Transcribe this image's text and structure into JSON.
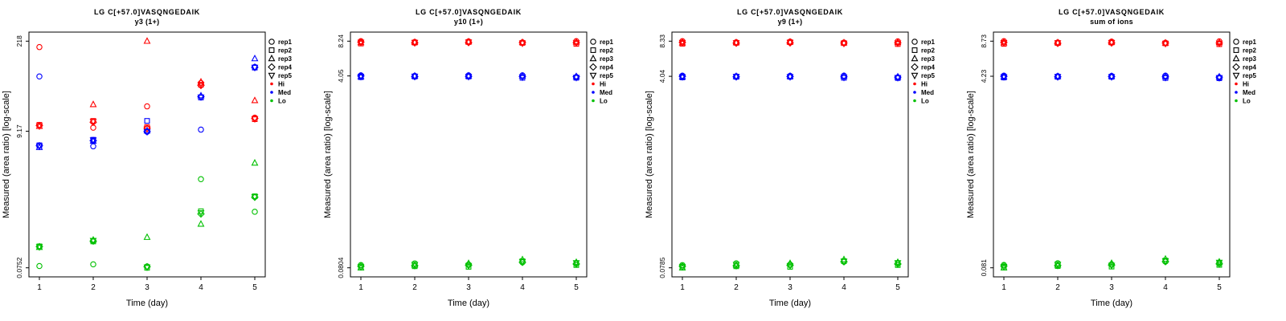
{
  "figure": {
    "xlabel": "Time (day)",
    "ylabel": "Measured (area ratio) [log-scale]"
  },
  "chart_data": [
    {
      "type": "scatter",
      "title": "LG C[+57.0]VASQNGEDAIK",
      "subtitle": "y3 (1+)",
      "xlabel": "Time (day)",
      "ylabel": "Measured (area ratio) [log-scale]",
      "yscale": "log",
      "x": [
        1,
        2,
        3,
        4,
        5
      ],
      "x_tick_labels": [
        "1",
        "2",
        "3",
        "4",
        "5"
      ],
      "ytick_values": [
        0.0752,
        9.17,
        218
      ],
      "ytick_labels": [
        "0.0752",
        "9.17",
        "218"
      ],
      "legend": {
        "position": "right",
        "rep_labels": [
          "rep1",
          "rep2",
          "rep3",
          "rep4",
          "rep5"
        ],
        "rep_symbols": [
          "circle",
          "square",
          "triangle-up",
          "diamond",
          "triangle-down"
        ],
        "group_labels": [
          "Hi",
          "Med",
          "Lo"
        ],
        "group_colors": [
          "#FF0000",
          "#0000FF",
          "#00C000"
        ]
      },
      "series": [
        {
          "name": "Hi",
          "color": "#FF0000",
          "reps": [
            [
              177,
              10.4,
              22,
              50,
              14.8
            ],
            [
              11.5,
              13.2,
              10.6,
              47,
              14.0
            ],
            [
              10.9,
              23.5,
              218,
              52,
              27
            ],
            [
              11.2,
              12.6,
              10.2,
              46,
              14.4
            ],
            [
              11.0,
              12.9,
              10.0,
              47.5,
              14.2
            ]
          ]
        },
        {
          "name": "Med",
          "color": "#0000FF",
          "reps": [
            [
              63,
              5.4,
              9.0,
              9.7,
              88
            ],
            [
              5.6,
              6.8,
              13.2,
              30,
              86
            ],
            [
              5.2,
              6.5,
              9.3,
              32,
              118
            ],
            [
              5.5,
              6.6,
              9.1,
              31,
              87
            ],
            [
              5.4,
              6.7,
              9.0,
              30.5,
              86.5
            ]
          ]
        },
        {
          "name": "Lo",
          "color": "#00C000",
          "reps": [
            [
              0.08,
              0.085,
              0.079,
              1.7,
              0.54
            ],
            [
              0.16,
              0.19,
              0.0752,
              0.55,
              0.93
            ],
            [
              0.155,
              0.2,
              0.22,
              0.35,
              3.0
            ],
            [
              0.158,
              0.193,
              0.078,
              0.5,
              0.9
            ],
            [
              0.157,
              0.196,
              0.077,
              0.52,
              0.91
            ]
          ]
        }
      ]
    },
    {
      "type": "scatter",
      "title": "LG C[+57.0]VASQNGEDAIK",
      "subtitle": "y10 (1+)",
      "xlabel": "Time (day)",
      "ylabel": "Measured (area ratio) [log-scale]",
      "yscale": "log",
      "x": [
        1,
        2,
        3,
        4,
        5
      ],
      "x_tick_labels": [
        "1",
        "2",
        "3",
        "4",
        "5"
      ],
      "ytick_values": [
        0.0804,
        4.05,
        8.24
      ],
      "ytick_labels": [
        "0.0804",
        "4.05",
        "8.24"
      ],
      "legend": {
        "position": "right",
        "rep_labels": [
          "rep1",
          "rep2",
          "rep3",
          "rep4",
          "rep5"
        ],
        "rep_symbols": [
          "circle",
          "square",
          "triangle-up",
          "diamond",
          "triangle-down"
        ],
        "group_labels": [
          "Hi",
          "Med",
          "Lo"
        ],
        "group_colors": [
          "#FF0000",
          "#0000FF",
          "#00C000"
        ]
      },
      "series": [
        {
          "name": "Hi",
          "color": "#FF0000",
          "reps": [
            [
              8.24,
              8.12,
              8.2,
              8.05,
              8.24
            ],
            [
              7.85,
              8.0,
              8.1,
              7.95,
              7.8
            ],
            [
              8.02,
              8.06,
              8.15,
              8.04,
              8.1
            ],
            [
              8.1,
              7.96,
              8.02,
              8.0,
              8.0
            ],
            [
              8.05,
              8.02,
              8.06,
              7.9,
              7.95
            ]
          ]
        },
        {
          "name": "Med",
          "color": "#0000FF",
          "reps": [
            [
              4.1,
              4.06,
              4.1,
              4.1,
              3.95
            ],
            [
              3.95,
              4.0,
              4.0,
              3.9,
              3.9
            ],
            [
              4.0,
              4.05,
              4.06,
              4.05,
              4.0
            ],
            [
              4.05,
              4.0,
              4.02,
              4.0,
              3.98
            ],
            [
              4.0,
              4.02,
              4.0,
              3.95,
              3.92
            ]
          ]
        },
        {
          "name": "Lo",
          "color": "#00C000",
          "reps": [
            [
              0.085,
              0.088,
              0.086,
              0.09,
              0.088
            ],
            [
              0.081,
              0.083,
              0.082,
              0.092,
              0.085
            ],
            [
              0.0804,
              0.085,
              0.088,
              0.095,
              0.09
            ],
            [
              0.083,
              0.084,
              0.085,
              0.09,
              0.087
            ],
            [
              0.082,
              0.086,
              0.084,
              0.091,
              0.089
            ]
          ]
        }
      ]
    },
    {
      "type": "scatter",
      "title": "LG C[+57.0]VASQNGEDAIK",
      "subtitle": "y9 (1+)",
      "xlabel": "Time (day)",
      "ylabel": "Measured (area ratio) [log-scale]",
      "yscale": "log",
      "x": [
        1,
        2,
        3,
        4,
        5
      ],
      "x_tick_labels": [
        "1",
        "2",
        "3",
        "4",
        "5"
      ],
      "ytick_values": [
        0.0785,
        4.04,
        8.33
      ],
      "ytick_labels": [
        "0.0785",
        "4.04",
        "8.33"
      ],
      "legend": {
        "position": "right",
        "rep_labels": [
          "rep1",
          "rep2",
          "rep3",
          "rep4",
          "rep5"
        ],
        "rep_symbols": [
          "circle",
          "square",
          "triangle-up",
          "diamond",
          "triangle-down"
        ],
        "group_labels": [
          "Hi",
          "Med",
          "Lo"
        ],
        "group_colors": [
          "#FF0000",
          "#0000FF",
          "#00C000"
        ]
      },
      "series": [
        {
          "name": "Hi",
          "color": "#FF0000",
          "reps": [
            [
              8.33,
              8.15,
              8.25,
              8.1,
              8.3
            ],
            [
              7.9,
              8.05,
              8.15,
              8.0,
              7.85
            ],
            [
              8.05,
              8.1,
              8.2,
              8.08,
              8.12
            ],
            [
              8.12,
              8.0,
              8.05,
              8.02,
              8.05
            ],
            [
              8.08,
              8.04,
              8.1,
              7.95,
              8.0
            ]
          ]
        },
        {
          "name": "Med",
          "color": "#0000FF",
          "reps": [
            [
              4.1,
              4.05,
              4.08,
              4.1,
              3.95
            ],
            [
              3.95,
              4.0,
              4.0,
              3.92,
              3.9
            ],
            [
              4.0,
              4.04,
              4.05,
              4.05,
              4.0
            ],
            [
              4.04,
              4.0,
              4.02,
              4.0,
              3.97
            ],
            [
              4.0,
              4.02,
              4.0,
              3.95,
              3.93
            ]
          ]
        },
        {
          "name": "Lo",
          "color": "#00C000",
          "reps": [
            [
              0.083,
              0.086,
              0.084,
              0.089,
              0.086
            ],
            [
              0.079,
              0.081,
              0.08,
              0.09,
              0.083
            ],
            [
              0.0785,
              0.083,
              0.086,
              0.093,
              0.088
            ],
            [
              0.081,
              0.082,
              0.083,
              0.089,
              0.085
            ],
            [
              0.08,
              0.084,
              0.082,
              0.0895,
              0.087
            ]
          ]
        }
      ]
    },
    {
      "type": "scatter",
      "title": "LG C[+57.0]VASQNGEDAIK",
      "subtitle": "sum of ions",
      "xlabel": "Time (day)",
      "ylabel": "Measured (area ratio) [log-scale]",
      "yscale": "log",
      "x": [
        1,
        2,
        3,
        4,
        5
      ],
      "x_tick_labels": [
        "1",
        "2",
        "3",
        "4",
        "5"
      ],
      "ytick_values": [
        0.081,
        4.23,
        8.73
      ],
      "ytick_labels": [
        "0.081",
        "4.23",
        "8.73"
      ],
      "legend": {
        "position": "right",
        "rep_labels": [
          "rep1",
          "rep2",
          "rep3",
          "rep4",
          "rep5"
        ],
        "rep_symbols": [
          "circle",
          "square",
          "triangle-up",
          "diamond",
          "triangle-down"
        ],
        "group_labels": [
          "Hi",
          "Med",
          "Lo"
        ],
        "group_colors": [
          "#FF0000",
          "#0000FF",
          "#00C000"
        ]
      },
      "series": [
        {
          "name": "Hi",
          "color": "#FF0000",
          "reps": [
            [
              8.73,
              8.5,
              8.65,
              8.45,
              8.7
            ],
            [
              8.25,
              8.4,
              8.5,
              8.35,
              8.2
            ],
            [
              8.45,
              8.48,
              8.55,
              8.42,
              8.5
            ],
            [
              8.5,
              8.35,
              8.42,
              8.4,
              8.4
            ],
            [
              8.46,
              8.42,
              8.46,
              8.3,
              8.35
            ]
          ]
        },
        {
          "name": "Med",
          "color": "#0000FF",
          "reps": [
            [
              4.28,
              4.24,
              4.26,
              4.28,
              4.12
            ],
            [
              4.12,
              4.18,
              4.18,
              4.08,
              4.06
            ],
            [
              4.18,
              4.22,
              4.23,
              4.22,
              4.18
            ],
            [
              4.22,
              4.18,
              4.2,
              4.18,
              4.15
            ],
            [
              4.18,
              4.2,
              4.18,
              4.12,
              4.1
            ]
          ]
        },
        {
          "name": "Lo",
          "color": "#00C000",
          "reps": [
            [
              0.086,
              0.089,
              0.087,
              0.092,
              0.09
            ],
            [
              0.0815,
              0.084,
              0.083,
              0.094,
              0.086
            ],
            [
              0.081,
              0.086,
              0.089,
              0.097,
              0.0915
            ],
            [
              0.084,
              0.085,
              0.086,
              0.092,
              0.088
            ],
            [
              0.083,
              0.087,
              0.085,
              0.093,
              0.0905
            ]
          ]
        }
      ]
    }
  ]
}
